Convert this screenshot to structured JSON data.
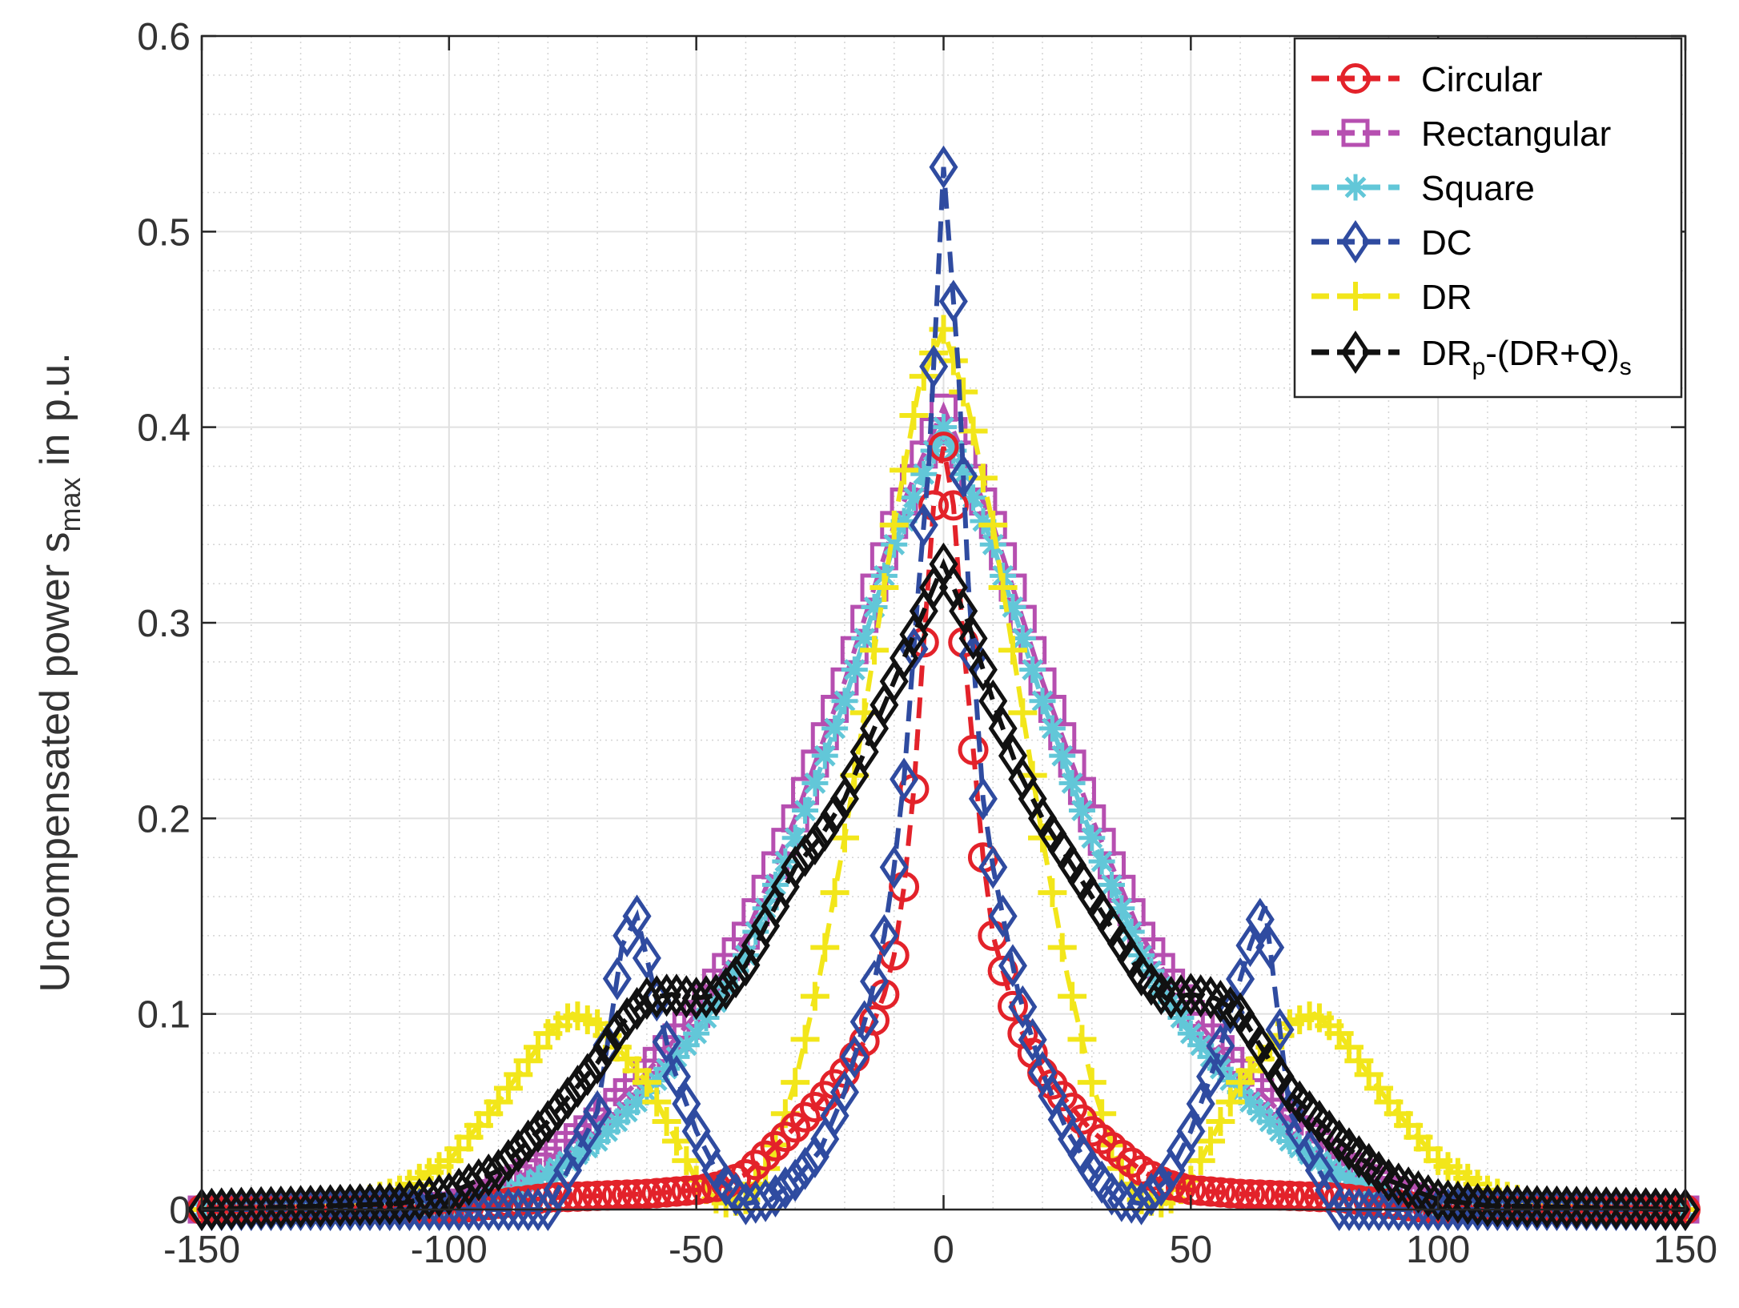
{
  "chart_data": {
    "type": "line",
    "title": "",
    "xlabel": "",
    "ylabel_main": "Uncompensated power s",
    "ylabel_sub": "max",
    "ylabel_tail": " in p.u.",
    "xlim": [
      -150,
      150
    ],
    "ylim": [
      0,
      0.6
    ],
    "xticks": [
      -150,
      -100,
      -50,
      0,
      50,
      100,
      150
    ],
    "xtick_labels": [
      "-150",
      "-100",
      "-50",
      "0",
      "50",
      "100",
      "150"
    ],
    "yticks": [
      0,
      0.1,
      0.2,
      0.3,
      0.4,
      0.5,
      0.6
    ],
    "ytick_labels": [
      "0",
      "0.1",
      "0.2",
      "0.3",
      "0.4",
      "0.5",
      "0.6"
    ],
    "grid": true,
    "minor_grid": true,
    "legend_position": "top-right",
    "series": [
      {
        "name": "Circular",
        "legend_label": "Circular",
        "color": "#e3222a",
        "marker": "circle",
        "points": [
          [
            -150,
            0
          ],
          [
            -100,
            0.0
          ],
          [
            -90,
            0.003
          ],
          [
            -80,
            0.006
          ],
          [
            -70,
            0.007
          ],
          [
            -60,
            0.008
          ],
          [
            -50,
            0.01
          ],
          [
            -45,
            0.012
          ],
          [
            -40,
            0.018
          ],
          [
            -35,
            0.03
          ],
          [
            -30,
            0.042
          ],
          [
            -25,
            0.055
          ],
          [
            -20,
            0.07
          ],
          [
            -15,
            0.09
          ],
          [
            -12,
            0.11
          ],
          [
            -10,
            0.13
          ],
          [
            -8,
            0.165
          ],
          [
            -6,
            0.215
          ],
          [
            -4,
            0.29
          ],
          [
            -2,
            0.36
          ],
          [
            0,
            0.39
          ],
          [
            2,
            0.36
          ],
          [
            4,
            0.29
          ],
          [
            6,
            0.235
          ],
          [
            8,
            0.18
          ],
          [
            10,
            0.14
          ],
          [
            15,
            0.095
          ],
          [
            20,
            0.07
          ],
          [
            25,
            0.055
          ],
          [
            30,
            0.04
          ],
          [
            35,
            0.03
          ],
          [
            40,
            0.02
          ],
          [
            45,
            0.013
          ],
          [
            50,
            0.01
          ],
          [
            60,
            0.008
          ],
          [
            70,
            0.007
          ],
          [
            80,
            0.006
          ],
          [
            90,
            0.003
          ],
          [
            100,
            0.0
          ],
          [
            150,
            0
          ]
        ]
      },
      {
        "name": "Rectangular",
        "legend_label": "Rectangular",
        "color": "#b64fb0",
        "marker": "square",
        "points": [
          [
            -150,
            0
          ],
          [
            -100,
            0.002
          ],
          [
            -90,
            0.01
          ],
          [
            -80,
            0.025
          ],
          [
            -70,
            0.045
          ],
          [
            -60,
            0.07
          ],
          [
            -50,
            0.1
          ],
          [
            -40,
            0.14
          ],
          [
            -30,
            0.2
          ],
          [
            -20,
            0.27
          ],
          [
            -10,
            0.35
          ],
          [
            -5,
            0.38
          ],
          [
            0,
            0.41
          ],
          [
            5,
            0.38
          ],
          [
            10,
            0.35
          ],
          [
            20,
            0.27
          ],
          [
            30,
            0.2
          ],
          [
            40,
            0.14
          ],
          [
            50,
            0.1
          ],
          [
            60,
            0.07
          ],
          [
            70,
            0.045
          ],
          [
            80,
            0.025
          ],
          [
            90,
            0.01
          ],
          [
            100,
            0.002
          ],
          [
            150,
            0
          ]
        ]
      },
      {
        "name": "Square",
        "legend_label": "Square",
        "color": "#62c7d8",
        "marker": "star",
        "points": [
          [
            -150,
            0
          ],
          [
            -100,
            0.001
          ],
          [
            -90,
            0.006
          ],
          [
            -80,
            0.018
          ],
          [
            -70,
            0.035
          ],
          [
            -60,
            0.06
          ],
          [
            -50,
            0.09
          ],
          [
            -40,
            0.13
          ],
          [
            -30,
            0.19
          ],
          [
            -20,
            0.26
          ],
          [
            -10,
            0.34
          ],
          [
            -5,
            0.37
          ],
          [
            0,
            0.4
          ],
          [
            5,
            0.37
          ],
          [
            10,
            0.34
          ],
          [
            20,
            0.26
          ],
          [
            30,
            0.19
          ],
          [
            40,
            0.13
          ],
          [
            50,
            0.09
          ],
          [
            60,
            0.06
          ],
          [
            70,
            0.035
          ],
          [
            80,
            0.018
          ],
          [
            90,
            0.006
          ],
          [
            100,
            0.001
          ],
          [
            150,
            0
          ]
        ]
      },
      {
        "name": "DC",
        "legend_label": "DC",
        "color": "#2f4ba0",
        "marker": "diamond",
        "points": [
          [
            -150,
            0
          ],
          [
            -100,
            0
          ],
          [
            -80,
            0
          ],
          [
            -70,
            0.05
          ],
          [
            -65,
            0.135
          ],
          [
            -62,
            0.15
          ],
          [
            -55,
            0.075
          ],
          [
            -50,
            0.04
          ],
          [
            -45,
            0.015
          ],
          [
            -40,
            0.003
          ],
          [
            -35,
            0.005
          ],
          [
            -30,
            0.015
          ],
          [
            -25,
            0.03
          ],
          [
            -20,
            0.06
          ],
          [
            -15,
            0.105
          ],
          [
            -12,
            0.14
          ],
          [
            -10,
            0.175
          ],
          [
            -8,
            0.22
          ],
          [
            -5,
            0.32
          ],
          [
            -3,
            0.38
          ],
          [
            0,
            0.533
          ],
          [
            3,
            0.43
          ],
          [
            5,
            0.32
          ],
          [
            8,
            0.21
          ],
          [
            10,
            0.175
          ],
          [
            12,
            0.15
          ],
          [
            15,
            0.112
          ],
          [
            20,
            0.07
          ],
          [
            25,
            0.04
          ],
          [
            30,
            0.02
          ],
          [
            35,
            0.005
          ],
          [
            40,
            0.003
          ],
          [
            45,
            0.015
          ],
          [
            50,
            0.04
          ],
          [
            55,
            0.075
          ],
          [
            62,
            0.135
          ],
          [
            65,
            0.155
          ],
          [
            70,
            0.05
          ],
          [
            80,
            0
          ],
          [
            100,
            0
          ],
          [
            150,
            0
          ]
        ]
      },
      {
        "name": "DR",
        "legend_label": "DR",
        "color": "#f2e61a",
        "marker": "plus",
        "points": [
          [
            -150,
            0
          ],
          [
            -120,
            0.002
          ],
          [
            -110,
            0.01
          ],
          [
            -100,
            0.025
          ],
          [
            -90,
            0.055
          ],
          [
            -80,
            0.09
          ],
          [
            -75,
            0.1
          ],
          [
            -70,
            0.095
          ],
          [
            -65,
            0.08
          ],
          [
            -60,
            0.065
          ],
          [
            -55,
            0.04
          ],
          [
            -50,
            0.015
          ],
          [
            -45,
            0.003
          ],
          [
            -40,
            0.005
          ],
          [
            -35,
            0.025
          ],
          [
            -30,
            0.065
          ],
          [
            -25,
            0.12
          ],
          [
            -20,
            0.19
          ],
          [
            -15,
            0.27
          ],
          [
            -10,
            0.35
          ],
          [
            -5,
            0.42
          ],
          [
            0,
            0.45
          ],
          [
            5,
            0.41
          ],
          [
            10,
            0.35
          ],
          [
            15,
            0.27
          ],
          [
            20,
            0.19
          ],
          [
            25,
            0.12
          ],
          [
            30,
            0.065
          ],
          [
            35,
            0.025
          ],
          [
            40,
            0.005
          ],
          [
            45,
            0.003
          ],
          [
            50,
            0.015
          ],
          [
            55,
            0.04
          ],
          [
            60,
            0.065
          ],
          [
            65,
            0.08
          ],
          [
            70,
            0.095
          ],
          [
            75,
            0.1
          ],
          [
            80,
            0.09
          ],
          [
            90,
            0.055
          ],
          [
            100,
            0.025
          ],
          [
            110,
            0.01
          ],
          [
            120,
            0.002
          ],
          [
            150,
            0
          ]
        ]
      },
      {
        "name": "DRp-(DR+Q)s",
        "legend_label": "DR",
        "legend_sub1": "p",
        "legend_mid": "-(DR+Q)",
        "legend_sub2": "s",
        "color": "#111111",
        "marker": "diamond",
        "points": [
          [
            -150,
            0
          ],
          [
            -110,
            0.003
          ],
          [
            -100,
            0.008
          ],
          [
            -90,
            0.02
          ],
          [
            -80,
            0.045
          ],
          [
            -70,
            0.075
          ],
          [
            -65,
            0.095
          ],
          [
            -60,
            0.108
          ],
          [
            -55,
            0.11
          ],
          [
            -50,
            0.108
          ],
          [
            -45,
            0.11
          ],
          [
            -40,
            0.125
          ],
          [
            -35,
            0.15
          ],
          [
            -30,
            0.175
          ],
          [
            -25,
            0.19
          ],
          [
            -20,
            0.21
          ],
          [
            -15,
            0.24
          ],
          [
            -10,
            0.27
          ],
          [
            -5,
            0.3
          ],
          [
            0,
            0.33
          ],
          [
            5,
            0.3
          ],
          [
            10,
            0.26
          ],
          [
            15,
            0.225
          ],
          [
            20,
            0.2
          ],
          [
            25,
            0.18
          ],
          [
            30,
            0.16
          ],
          [
            35,
            0.14
          ],
          [
            40,
            0.12
          ],
          [
            45,
            0.108
          ],
          [
            50,
            0.11
          ],
          [
            55,
            0.108
          ],
          [
            60,
            0.1
          ],
          [
            65,
            0.08
          ],
          [
            70,
            0.06
          ],
          [
            80,
            0.035
          ],
          [
            90,
            0.015
          ],
          [
            100,
            0.005
          ],
          [
            110,
            0.002
          ],
          [
            150,
            0
          ]
        ]
      }
    ]
  }
}
